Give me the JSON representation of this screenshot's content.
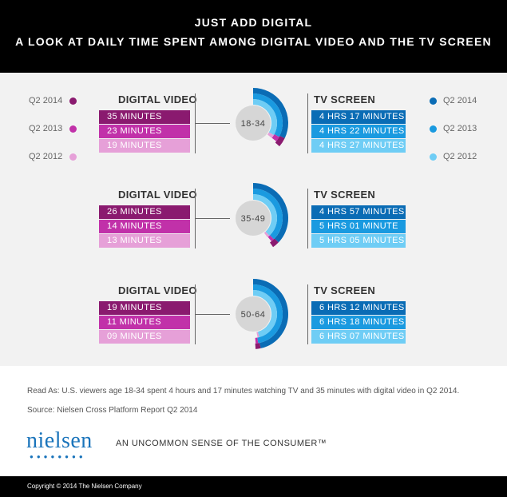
{
  "header": {
    "title": "JUST ADD DIGITAL",
    "subtitle": "A LOOK AT DAILY TIME SPENT AMONG DIGITAL VIDEO AND THE TV SCREEN"
  },
  "legend": {
    "digital": [
      {
        "label": "Q2 2014",
        "color": "#8a1a6f"
      },
      {
        "label": "Q2 2013",
        "color": "#c131a9"
      },
      {
        "label": "Q2 2012",
        "color": "#e6a0d8"
      }
    ],
    "tv": [
      {
        "label": "Q2 2014",
        "color": "#0a6cb5"
      },
      {
        "label": "Q2 2013",
        "color": "#1a9ae0"
      },
      {
        "label": "Q2 2012",
        "color": "#6fcdf5"
      }
    ]
  },
  "chart_data": {
    "type": "radial-bar",
    "title": "A LOOK AT DAILY TIME SPENT AMONG DIGITAL VIDEO AND THE TV SCREEN",
    "series": [
      "Q2 2014",
      "Q2 2013",
      "Q2 2012"
    ],
    "groups": [
      {
        "age": "18-34",
        "digital_title": "DIGITAL VIDEO",
        "tv_title": "TV SCREEN",
        "digital_labels": [
          "35 MINUTES",
          "23 MINUTES",
          "19 MINUTES"
        ],
        "tv_labels": [
          "4 HRS 17 MINUTES",
          "4 HRS 22 MINUTES",
          "4 HRS 27 MINUTES"
        ],
        "digital_minutes": [
          35,
          23,
          19
        ],
        "tv_minutes": [
          257,
          262,
          267
        ]
      },
      {
        "age": "35-49",
        "digital_title": "DIGITAL VIDEO",
        "tv_title": "TV SCREEN",
        "digital_labels": [
          "26 MINUTES",
          "14 MINUTES",
          "13 MINUTES"
        ],
        "tv_labels": [
          "4 HRS 57 MINUTES",
          "5 HRS 01 MINUTE",
          "5 HRS 05 MINUTES"
        ],
        "digital_minutes": [
          26,
          14,
          13
        ],
        "tv_minutes": [
          297,
          301,
          305
        ]
      },
      {
        "age": "50-64",
        "digital_title": "DIGITAL VIDEO",
        "tv_title": "TV SCREEN",
        "digital_labels": [
          "19 MINUTES",
          "11 MINUTES",
          "09 MINUTES"
        ],
        "tv_labels": [
          "6 HRS 12 MINUTES",
          "6 HRS 18 MINUTES",
          "6 HRS 07 MINUTES"
        ],
        "digital_minutes": [
          19,
          11,
          9
        ],
        "tv_minutes": [
          372,
          378,
          367
        ]
      }
    ]
  },
  "notes": {
    "read_as": "Read As: U.S. viewers age 18-34 spent 4 hours and 17 minutes watching TV and 35 minutes with digital video in Q2 2014.",
    "source": "Source: Nielsen Cross Platform Report Q2 2014"
  },
  "brand": {
    "logo": "nielsen",
    "tagline": "AN UNCOMMON SENSE OF THE CONSUMER™"
  },
  "footer": {
    "copyright": "Copyright © 2014 The Nielsen Company"
  }
}
